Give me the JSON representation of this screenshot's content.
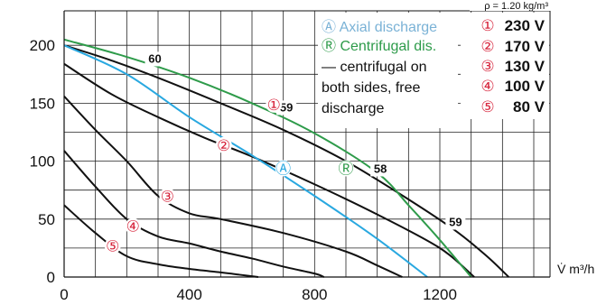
{
  "chart_data": {
    "type": "line",
    "xlabel": "V̇ m³/h",
    "ylabel": "",
    "xlim": [
      0,
      1400
    ],
    "ylim": [
      0,
      220
    ],
    "x_ticks": [
      "0",
      "400",
      "800",
      "1200"
    ],
    "y_ticks": [
      "0",
      "50",
      "100",
      "150",
      "200"
    ],
    "density_note": "ρ = 1.20 kg/m³",
    "colors": {
      "axial": "#29a8e0",
      "centrifugal": "#2e9b4a",
      "black": "#111111",
      "marker": "#d7263d"
    },
    "legend": [
      {
        "symbol": "Ⓐ",
        "label": "Axial discharge",
        "color": "#7ab2d6"
      },
      {
        "symbol": "Ⓡ",
        "label": "Centrifugal dis.",
        "color": "#2e9b4a"
      },
      {
        "symbol": "—",
        "label": "centrifugal on both sides, free discharge",
        "lines": [
          "centrifugal on",
          "both sides, free",
          "discharge"
        ],
        "color": "#111111"
      }
    ],
    "voltage_legend": [
      {
        "symbol": "①",
        "label": "230 V"
      },
      {
        "symbol": "②",
        "label": "170 V"
      },
      {
        "symbol": "③",
        "label": "130 V"
      },
      {
        "symbol": "④",
        "label": "100 V"
      },
      {
        "symbol": "⑤",
        "label": "80 V"
      }
    ],
    "series": [
      {
        "key": "s230",
        "marker": "①",
        "color": "#111111",
        "x": [
          0,
          150,
          300,
          500,
          700,
          900,
          1100,
          1250,
          1350,
          1420
        ],
        "y": [
          200,
          187,
          172,
          150,
          127,
          100,
          67,
          40,
          18,
          0
        ]
      },
      {
        "key": "s170",
        "marker": "②",
        "color": "#111111",
        "x": [
          0,
          150,
          300,
          450,
          600,
          800,
          1000,
          1200,
          1310
        ],
        "y": [
          184,
          158,
          138,
          120,
          104,
          80,
          54,
          25,
          0
        ]
      },
      {
        "key": "s130",
        "marker": "③",
        "color": "#111111",
        "x": [
          0,
          100,
          200,
          300,
          400,
          500,
          700,
          900,
          1000,
          1080
        ],
        "y": [
          156,
          127,
          100,
          70,
          55,
          50,
          38,
          22,
          10,
          0
        ]
      },
      {
        "key": "s100",
        "marker": "④",
        "color": "#111111",
        "x": [
          0,
          100,
          200,
          300,
          400,
          500,
          600,
          700,
          800,
          830
        ],
        "y": [
          109,
          78,
          50,
          35,
          29,
          22,
          16,
          9,
          3,
          0
        ]
      },
      {
        "key": "s80",
        "marker": "⑤",
        "color": "#111111",
        "x": [
          0,
          100,
          200,
          300,
          400,
          500,
          560,
          620
        ],
        "y": [
          62,
          38,
          18,
          11,
          7,
          4,
          2,
          0
        ]
      },
      {
        "key": "axial",
        "marker": "Ⓐ",
        "color": "#29a8e0",
        "x": [
          0,
          200,
          400,
          600,
          800,
          1000,
          1160
        ],
        "y": [
          200,
          175,
          138,
          105,
          70,
          33,
          0
        ]
      },
      {
        "key": "centrifugal",
        "marker": "Ⓡ",
        "color": "#2e9b4a",
        "x": [
          0,
          200,
          400,
          600,
          800,
          1000,
          1100,
          1200,
          1300
        ],
        "y": [
          205,
          190,
          172,
          150,
          124,
          90,
          62,
          32,
          0
        ]
      }
    ],
    "annotations": [
      {
        "text": "60",
        "x": 290,
        "y": 185
      },
      {
        "text": "59",
        "x": 710,
        "y": 143
      },
      {
        "text": "58",
        "x": 1010,
        "y": 90
      },
      {
        "text": "59",
        "x": 1250,
        "y": 44
      }
    ],
    "markers": [
      {
        "text": "①",
        "x": 670,
        "y": 145,
        "color": "#d7263d"
      },
      {
        "text": "②",
        "x": 510,
        "y": 110,
        "color": "#d7263d"
      },
      {
        "text": "③",
        "x": 330,
        "y": 66,
        "color": "#d7263d"
      },
      {
        "text": "④",
        "x": 220,
        "y": 40,
        "color": "#d7263d"
      },
      {
        "text": "⑤",
        "x": 155,
        "y": 23,
        "color": "#d7263d"
      },
      {
        "text": "Ⓐ",
        "x": 700,
        "y": 90,
        "color": "#29a8e0"
      },
      {
        "text": "Ⓡ",
        "x": 900,
        "y": 90,
        "color": "#2e9b4a"
      }
    ]
  }
}
